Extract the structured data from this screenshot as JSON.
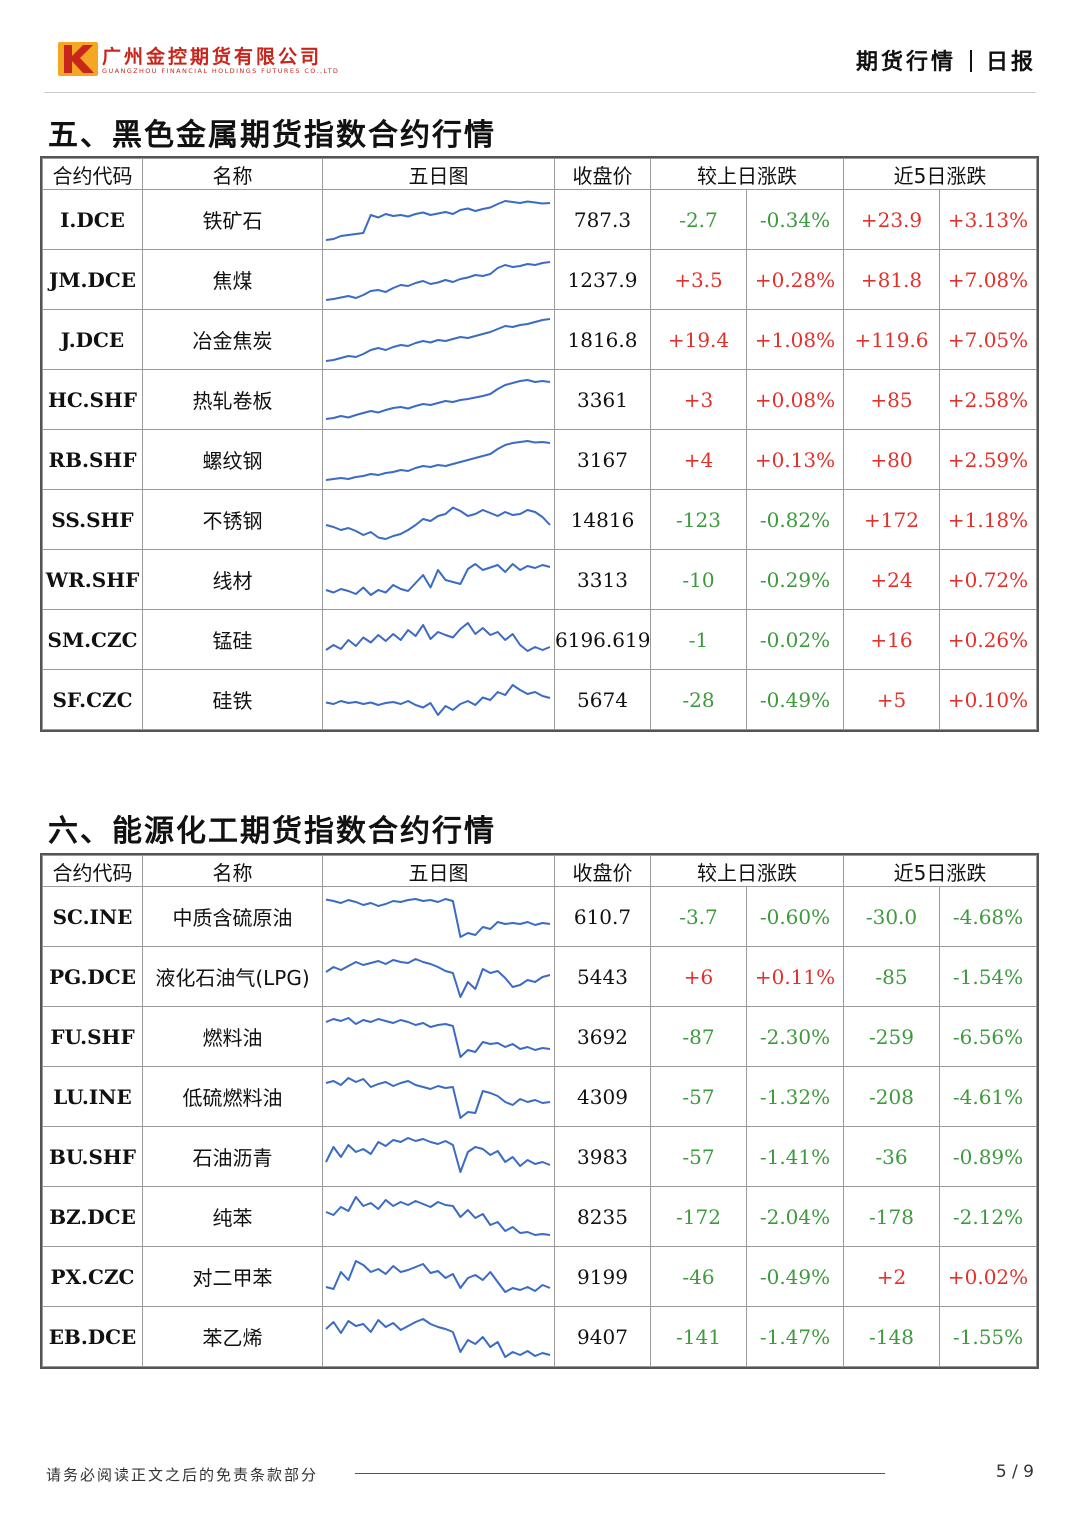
{
  "header": {
    "company_cn": "广州金控期货有限公司",
    "company_en": "GUANGZHOU FINANCIAL HOLDINGS FUTURES CO.,LTD",
    "report_type": "期货行情",
    "report_freq": "日报",
    "brand_color": "#c8261c"
  },
  "columns": {
    "code": "合约代码",
    "name": "名称",
    "chart": "五日图",
    "close": "收盘价",
    "day_change": "较上日涨跌",
    "five_day_change": "近5日涨跌"
  },
  "colors": {
    "up": "#e3302b",
    "down": "#3d9a3d",
    "line": "#3b6bc4"
  },
  "sections": [
    {
      "title": "五、黑色金属期货指数合约行情",
      "rows": [
        {
          "code": "I.DCE",
          "name": "铁矿石",
          "close": "787.3",
          "d_chg": "-2.7",
          "d_pct": "-0.34%",
          "w_chg": "+23.9",
          "w_pct": "+3.13%",
          "d_dir": "down",
          "w_dir": "up",
          "spark": [
            10,
            12,
            18,
            20,
            22,
            24,
            60,
            55,
            62,
            58,
            60,
            57,
            62,
            65,
            60,
            63,
            66,
            62,
            70,
            73,
            68,
            72,
            75,
            82,
            88,
            86,
            84,
            87,
            85,
            83,
            84
          ]
        },
        {
          "code": "JM.DCE",
          "name": "焦煤",
          "close": "1237.9",
          "d_chg": "+3.5",
          "d_pct": "+0.28%",
          "w_chg": "+81.8",
          "w_pct": "+7.08%",
          "d_dir": "up",
          "w_dir": "up",
          "spark": [
            10,
            12,
            15,
            18,
            14,
            20,
            28,
            30,
            26,
            34,
            40,
            38,
            44,
            48,
            42,
            45,
            50,
            46,
            52,
            55,
            60,
            58,
            62,
            74,
            80,
            76,
            78,
            82,
            80,
            84,
            86
          ]
        },
        {
          "code": "J.DCE",
          "name": "冶金焦炭",
          "close": "1816.8",
          "d_chg": "+19.4",
          "d_pct": "+1.08%",
          "w_chg": "+119.6",
          "w_pct": "+7.05%",
          "d_dir": "up",
          "w_dir": "up",
          "spark": [
            8,
            10,
            14,
            18,
            16,
            22,
            30,
            34,
            30,
            36,
            40,
            38,
            44,
            48,
            45,
            50,
            48,
            52,
            56,
            54,
            58,
            62,
            66,
            72,
            78,
            76,
            80,
            82,
            86,
            90,
            92
          ]
        },
        {
          "code": "HC.SHF",
          "name": "热轧卷板",
          "close": "3361",
          "d_chg": "+3",
          "d_pct": "+0.08%",
          "w_chg": "+85",
          "w_pct": "+2.58%",
          "d_dir": "up",
          "w_dir": "up",
          "spark": [
            12,
            14,
            18,
            15,
            20,
            24,
            28,
            25,
            30,
            34,
            36,
            33,
            38,
            42,
            40,
            44,
            48,
            46,
            50,
            52,
            55,
            58,
            62,
            72,
            80,
            84,
            88,
            90,
            86,
            88,
            86
          ]
        },
        {
          "code": "RB.SHF",
          "name": "螺纹钢",
          "close": "3167",
          "d_chg": "+4",
          "d_pct": "+0.13%",
          "w_chg": "+80",
          "w_pct": "+2.59%",
          "d_dir": "up",
          "w_dir": "up",
          "spark": [
            10,
            12,
            14,
            12,
            16,
            18,
            22,
            20,
            24,
            26,
            30,
            28,
            34,
            38,
            36,
            40,
            38,
            42,
            46,
            50,
            54,
            58,
            62,
            72,
            80,
            84,
            86,
            88,
            85,
            86,
            84
          ]
        },
        {
          "code": "SS.SHF",
          "name": "不锈钢",
          "close": "14816",
          "d_chg": "-123",
          "d_pct": "-0.82%",
          "w_chg": "+172",
          "w_pct": "+1.18%",
          "d_dir": "down",
          "w_dir": "up",
          "spark": [
            40,
            36,
            30,
            34,
            28,
            20,
            26,
            15,
            12,
            18,
            22,
            30,
            40,
            52,
            48,
            58,
            62,
            75,
            68,
            58,
            62,
            70,
            64,
            58,
            66,
            60,
            62,
            70,
            66,
            56,
            40
          ]
        },
        {
          "code": "WR.SHF",
          "name": "线材",
          "close": "3313",
          "d_chg": "-10",
          "d_pct": "-0.29%",
          "w_chg": "+24",
          "w_pct": "+0.72%",
          "d_dir": "down",
          "w_dir": "up",
          "spark": [
            30,
            25,
            32,
            28,
            22,
            35,
            20,
            30,
            25,
            40,
            32,
            28,
            44,
            60,
            35,
            70,
            50,
            46,
            42,
            72,
            82,
            70,
            75,
            80,
            66,
            82,
            70,
            78,
            74,
            80,
            76
          ]
        },
        {
          "code": "SM.CZC",
          "name": "锰硅",
          "close": "6196.619",
          "d_chg": "-1",
          "d_pct": "-0.02%",
          "w_chg": "+16",
          "w_pct": "+0.26%",
          "d_dir": "down",
          "w_dir": "up",
          "spark": [
            30,
            40,
            32,
            50,
            38,
            55,
            45,
            60,
            48,
            62,
            50,
            70,
            58,
            80,
            52,
            66,
            60,
            55,
            72,
            84,
            62,
            74,
            60,
            66,
            50,
            62,
            40,
            28,
            36,
            30,
            36
          ]
        },
        {
          "code": "SF.CZC",
          "name": "硅铁",
          "close": "5674",
          "d_chg": "-28",
          "d_pct": "-0.49%",
          "w_chg": "+5",
          "w_pct": "+0.10%",
          "d_dir": "down",
          "w_dir": "up",
          "spark": [
            45,
            42,
            48,
            44,
            46,
            42,
            45,
            40,
            44,
            46,
            42,
            48,
            40,
            35,
            44,
            20,
            38,
            30,
            42,
            48,
            40,
            55,
            50,
            66,
            60,
            80,
            70,
            62,
            66,
            58,
            54
          ]
        }
      ]
    },
    {
      "title": "六、能源化工期货指数合约行情",
      "rows": [
        {
          "code": "SC.INE",
          "name": "中质含硫原油",
          "close": "610.7",
          "d_chg": "-3.7",
          "d_pct": "-0.60%",
          "w_chg": "-30.0",
          "w_pct": "-4.68%",
          "d_dir": "down",
          "w_dir": "down",
          "spark": [
            85,
            82,
            78,
            84,
            80,
            74,
            78,
            72,
            76,
            82,
            80,
            84,
            86,
            82,
            84,
            80,
            86,
            82,
            10,
            18,
            14,
            30,
            26,
            40,
            36,
            38,
            36,
            40,
            34,
            38,
            36
          ]
        },
        {
          "code": "PG.DCE",
          "name": "液化石油气(LPG)",
          "close": "5443",
          "d_chg": "+6",
          "d_pct": "+0.11%",
          "w_chg": "-85",
          "w_pct": "-1.54%",
          "d_dir": "up",
          "w_dir": "down",
          "spark": [
            60,
            70,
            64,
            72,
            80,
            74,
            78,
            82,
            76,
            84,
            80,
            78,
            86,
            80,
            76,
            70,
            62,
            58,
            10,
            40,
            26,
            66,
            58,
            62,
            48,
            30,
            34,
            44,
            40,
            50,
            54
          ]
        },
        {
          "code": "FU.SHF",
          "name": "燃料油",
          "close": "3692",
          "d_chg": "-87",
          "d_pct": "-2.30%",
          "w_chg": "-259",
          "w_pct": "-6.56%",
          "d_dir": "down",
          "w_dir": "down",
          "spark": [
            80,
            86,
            82,
            88,
            76,
            84,
            80,
            86,
            82,
            78,
            84,
            80,
            74,
            78,
            70,
            74,
            76,
            72,
            10,
            24,
            20,
            40,
            36,
            38,
            30,
            36,
            26,
            30,
            24,
            28,
            26
          ]
        },
        {
          "code": "LU.INE",
          "name": "低硫燃料油",
          "close": "4309",
          "d_chg": "-57",
          "d_pct": "-1.32%",
          "w_chg": "-208",
          "w_pct": "-4.61%",
          "d_dir": "down",
          "w_dir": "down",
          "spark": [
            78,
            82,
            74,
            88,
            80,
            86,
            70,
            76,
            80,
            72,
            78,
            82,
            74,
            70,
            66,
            72,
            68,
            70,
            8,
            20,
            18,
            62,
            58,
            52,
            40,
            34,
            46,
            40,
            44,
            38,
            40
          ]
        },
        {
          "code": "BU.SHF",
          "name": "石油沥青",
          "close": "3983",
          "d_chg": "-57",
          "d_pct": "-1.41%",
          "w_chg": "-36",
          "w_pct": "-0.89%",
          "d_dir": "down",
          "w_dir": "down",
          "spark": [
            40,
            70,
            50,
            74,
            60,
            66,
            56,
            80,
            72,
            84,
            80,
            88,
            82,
            86,
            80,
            76,
            82,
            74,
            20,
            60,
            70,
            66,
            54,
            62,
            40,
            50,
            32,
            44,
            36,
            40,
            34
          ]
        },
        {
          "code": "BZ.DCE",
          "name": "纯苯",
          "close": "8235",
          "d_chg": "-172",
          "d_pct": "-2.04%",
          "w_chg": "-178",
          "w_pct": "-2.12%",
          "d_dir": "down",
          "w_dir": "down",
          "spark": [
            60,
            54,
            70,
            62,
            90,
            72,
            78,
            66,
            84,
            72,
            80,
            74,
            82,
            76,
            70,
            80,
            74,
            72,
            50,
            64,
            48,
            56,
            34,
            40,
            22,
            30,
            18,
            20,
            14,
            16,
            14
          ]
        },
        {
          "code": "PX.CZC",
          "name": "对二甲苯",
          "close": "9199",
          "d_chg": "-46",
          "d_pct": "-0.49%",
          "w_chg": "+2",
          "w_pct": "+0.02%",
          "d_dir": "down",
          "w_dir": "up",
          "spark": [
            30,
            26,
            60,
            44,
            82,
            74,
            60,
            66,
            56,
            72,
            60,
            64,
            70,
            76,
            58,
            62,
            48,
            56,
            28,
            48,
            54,
            44,
            60,
            40,
            20,
            28,
            24,
            30,
            22,
            34,
            28
          ]
        },
        {
          "code": "EB.DCE",
          "name": "苯乙烯",
          "close": "9407",
          "d_chg": "-141",
          "d_pct": "-1.47%",
          "w_chg": "-148",
          "w_pct": "-1.55%",
          "d_dir": "down",
          "w_dir": "down",
          "spark": [
            66,
            80,
            58,
            82,
            72,
            76,
            60,
            84,
            70,
            78,
            64,
            72,
            80,
            86,
            76,
            70,
            66,
            60,
            20,
            44,
            36,
            50,
            30,
            40,
            10,
            20,
            14,
            22,
            12,
            18,
            14
          ]
        }
      ]
    }
  ],
  "footer": {
    "note": "请务必阅读正文之后的免责条款部分",
    "page": "5 / 9"
  }
}
